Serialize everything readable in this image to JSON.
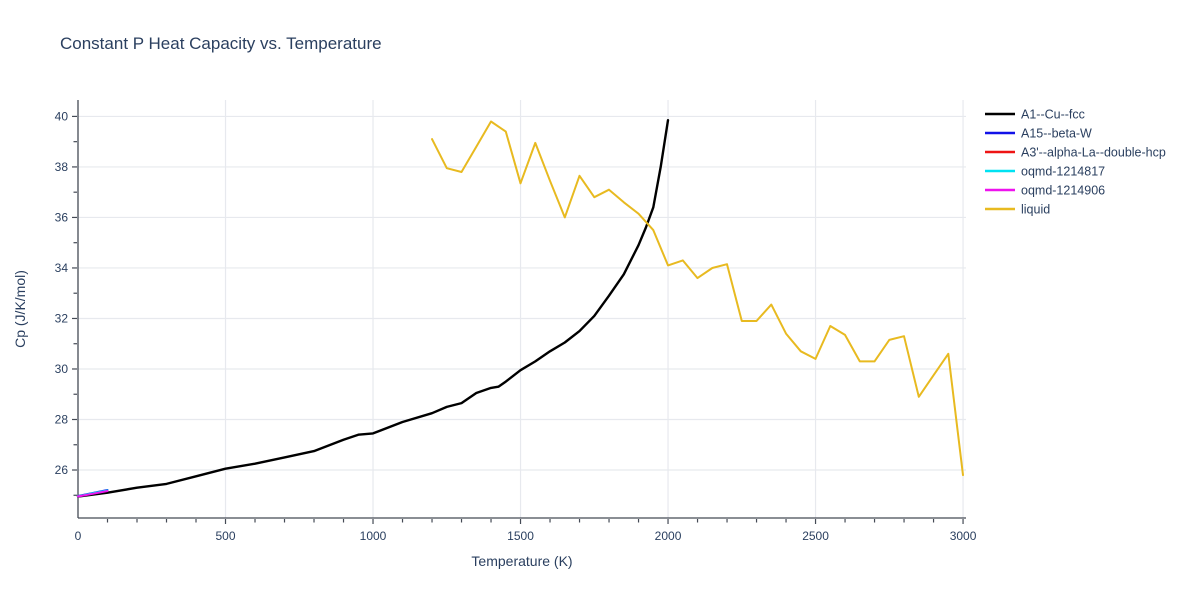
{
  "chart_data": {
    "type": "line",
    "title": "Constant P Heat Capacity vs. Temperature",
    "xlabel": "Temperature (K)",
    "ylabel": "Cp (J/K/mol)",
    "xlim": [
      0,
      3010
    ],
    "ylim": [
      24.1,
      40.65
    ],
    "x_ticks": [
      0,
      500,
      1000,
      1500,
      2000,
      2500,
      3000
    ],
    "x_minor_step": 100,
    "y_ticks": [
      26,
      28,
      30,
      32,
      34,
      36,
      38,
      40
    ],
    "y_minor_ticks": [
      25,
      27,
      29,
      31,
      33,
      35,
      37,
      39
    ],
    "grid": true,
    "legend_position": "top-right",
    "colors": {
      "grid": "#e7e9ee",
      "axis": "#444a55",
      "text": "#2a3f5f"
    },
    "series": [
      {
        "name": "A1--Cu--fcc",
        "color": "#000000",
        "width": 2.4,
        "points": [
          [
            0,
            24.95
          ],
          [
            100,
            25.1
          ],
          [
            200,
            25.3
          ],
          [
            300,
            25.45
          ],
          [
            400,
            25.75
          ],
          [
            500,
            26.05
          ],
          [
            600,
            26.25
          ],
          [
            700,
            26.5
          ],
          [
            800,
            26.75
          ],
          [
            900,
            27.2
          ],
          [
            950,
            27.4
          ],
          [
            1000,
            27.45
          ],
          [
            1100,
            27.9
          ],
          [
            1200,
            28.25
          ],
          [
            1250,
            28.5
          ],
          [
            1300,
            28.65
          ],
          [
            1350,
            29.05
          ],
          [
            1400,
            29.25
          ],
          [
            1425,
            29.3
          ],
          [
            1450,
            29.5
          ],
          [
            1500,
            29.95
          ],
          [
            1550,
            30.3
          ],
          [
            1600,
            30.7
          ],
          [
            1650,
            31.05
          ],
          [
            1700,
            31.5
          ],
          [
            1750,
            32.1
          ],
          [
            1800,
            32.9
          ],
          [
            1850,
            33.75
          ],
          [
            1900,
            34.9
          ],
          [
            1925,
            35.6
          ],
          [
            1950,
            36.4
          ],
          [
            1975,
            38.0
          ],
          [
            2000,
            39.85
          ]
        ]
      },
      {
        "name": "A15--beta-W",
        "color": "#1212e8",
        "width": 2,
        "points": [
          [
            0,
            24.97
          ],
          [
            50,
            25.09
          ],
          [
            100,
            25.21
          ]
        ]
      },
      {
        "name": "A3'--alpha-La--double-hcp",
        "color": "#ee1414",
        "width": 2,
        "points": [
          [
            0,
            24.96
          ],
          [
            50,
            25.07
          ],
          [
            100,
            25.18
          ]
        ]
      },
      {
        "name": "oqmd-1214817",
        "color": "#00e2f2",
        "width": 2,
        "points": [
          [
            0,
            24.96
          ],
          [
            50,
            25.08
          ],
          [
            100,
            25.19
          ]
        ]
      },
      {
        "name": "oqmd-1214906",
        "color": "#ee12ee",
        "width": 2,
        "points": [
          [
            0,
            24.95
          ],
          [
            50,
            25.06
          ],
          [
            100,
            25.17
          ]
        ]
      },
      {
        "name": "liquid",
        "color": "#e8ba20",
        "width": 2,
        "points": [
          [
            1200,
            39.1
          ],
          [
            1250,
            37.95
          ],
          [
            1300,
            37.8
          ],
          [
            1350,
            38.8
          ],
          [
            1400,
            39.8
          ],
          [
            1450,
            39.4
          ],
          [
            1500,
            37.35
          ],
          [
            1550,
            38.95
          ],
          [
            1600,
            37.45
          ],
          [
            1650,
            36.0
          ],
          [
            1700,
            37.65
          ],
          [
            1750,
            36.8
          ],
          [
            1800,
            37.1
          ],
          [
            1850,
            36.6
          ],
          [
            1900,
            36.15
          ],
          [
            1950,
            35.5
          ],
          [
            2000,
            34.1
          ],
          [
            2050,
            34.3
          ],
          [
            2100,
            33.6
          ],
          [
            2150,
            34.0
          ],
          [
            2200,
            34.15
          ],
          [
            2250,
            31.9
          ],
          [
            2300,
            31.9
          ],
          [
            2350,
            32.55
          ],
          [
            2400,
            31.4
          ],
          [
            2450,
            30.7
          ],
          [
            2500,
            30.4
          ],
          [
            2550,
            31.7
          ],
          [
            2600,
            31.35
          ],
          [
            2650,
            30.3
          ],
          [
            2700,
            30.3
          ],
          [
            2750,
            31.15
          ],
          [
            2800,
            31.3
          ],
          [
            2850,
            28.9
          ],
          [
            2900,
            29.75
          ],
          [
            2950,
            30.6
          ],
          [
            3000,
            25.8
          ]
        ]
      }
    ]
  }
}
